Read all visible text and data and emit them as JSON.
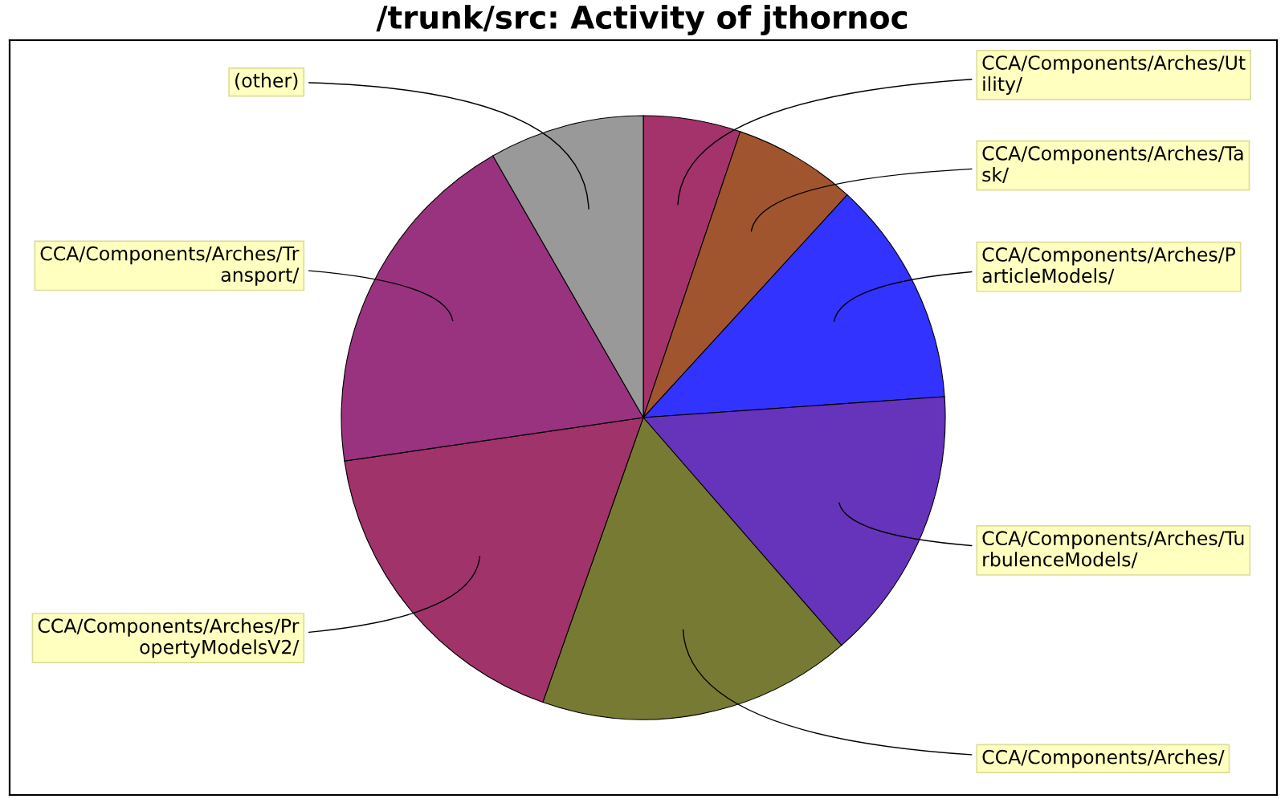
{
  "chart_data": {
    "type": "pie",
    "title": "/trunk/src: Activity of jthornoc",
    "categories": [
      "CCA/Components/Arches/Ut\nility/",
      "CCA/Components/Arches/Ta\nsk/",
      "CCA/Components/Arches/P\narticleModels/",
      "CCA/Components/Arches/Tu\nrbulenceModels/",
      "CCA/Components/Arches/",
      "CCA/Components/Arches/Pr\nopertyModelsV2/",
      "CCA/Components/Arches/Tr\nansport/",
      "(other)"
    ],
    "values": [
      5.2,
      6.6,
      12.1,
      14.7,
      16.8,
      17.3,
      19.0,
      8.3
    ],
    "colors": [
      "#a3336a",
      "#a0552f",
      "#3333ff",
      "#6633bb",
      "#777a33",
      "#a0336a",
      "#99337f",
      "#999999"
    ]
  }
}
